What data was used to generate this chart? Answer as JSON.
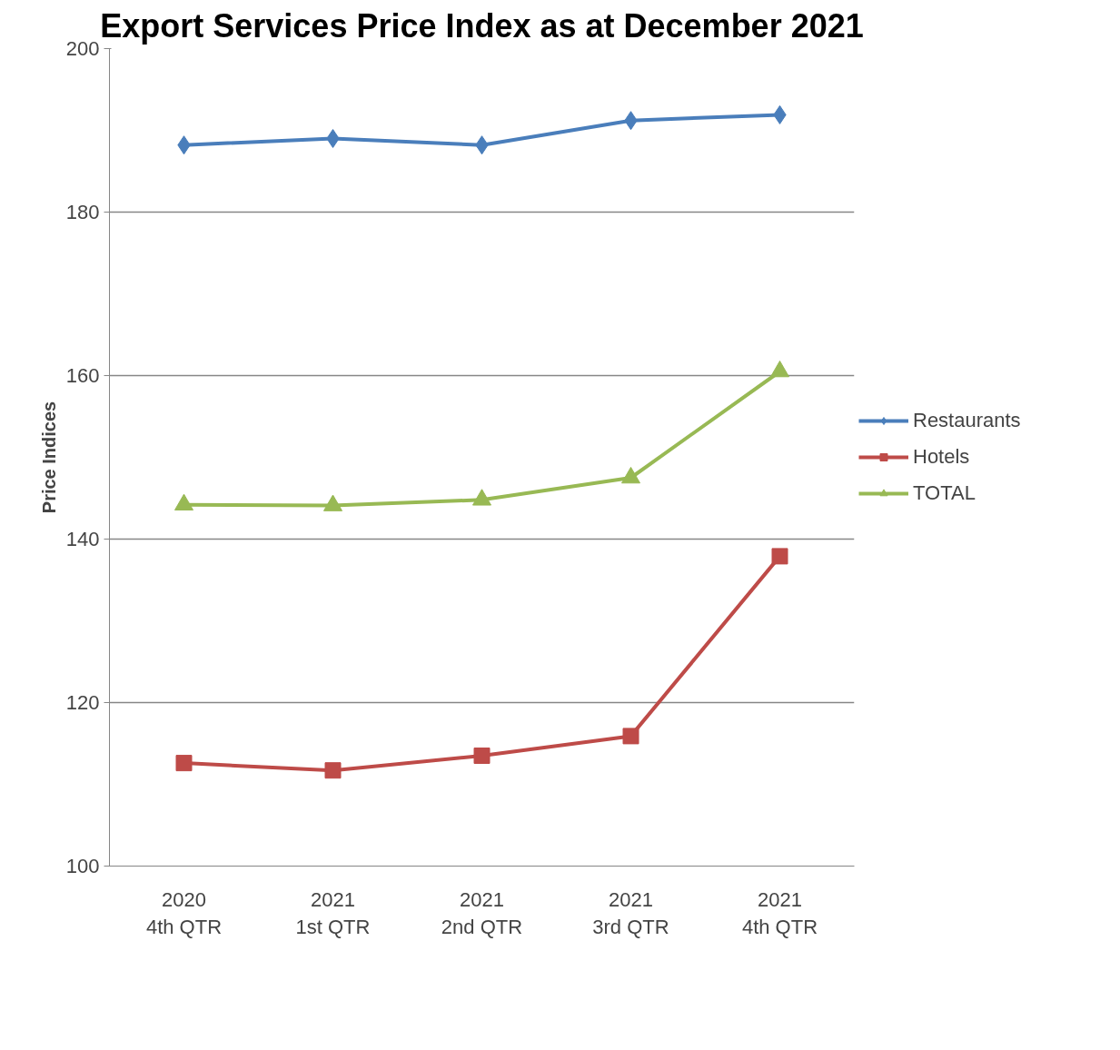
{
  "chart_data": {
    "type": "line",
    "title": "Export Services Price Index as at December 2021",
    "ylabel": "Price Indices",
    "categories": [
      "2020\n4th QTR",
      "2021\n1st QTR",
      "2021\n2nd QTR",
      "2021\n3rd QTR",
      "2021\n4th QTR"
    ],
    "series": [
      {
        "name": "Restaurants",
        "color": "#4a7ebb",
        "marker": "diamond",
        "values": [
          188.2,
          189.0,
          188.2,
          191.2,
          191.9
        ]
      },
      {
        "name": "Hotels",
        "color": "#be4b48",
        "marker": "square",
        "values": [
          112.6,
          111.7,
          113.5,
          115.9,
          137.9
        ]
      },
      {
        "name": "TOTAL",
        "color": "#98b954",
        "marker": "triangle",
        "values": [
          144.2,
          144.1,
          144.8,
          147.5,
          160.5
        ]
      }
    ],
    "ylim": [
      100,
      200
    ],
    "yticks": [
      100,
      120,
      140,
      160,
      180,
      200
    ],
    "grid": "y",
    "legend": "right",
    "line_style": "solid"
  }
}
